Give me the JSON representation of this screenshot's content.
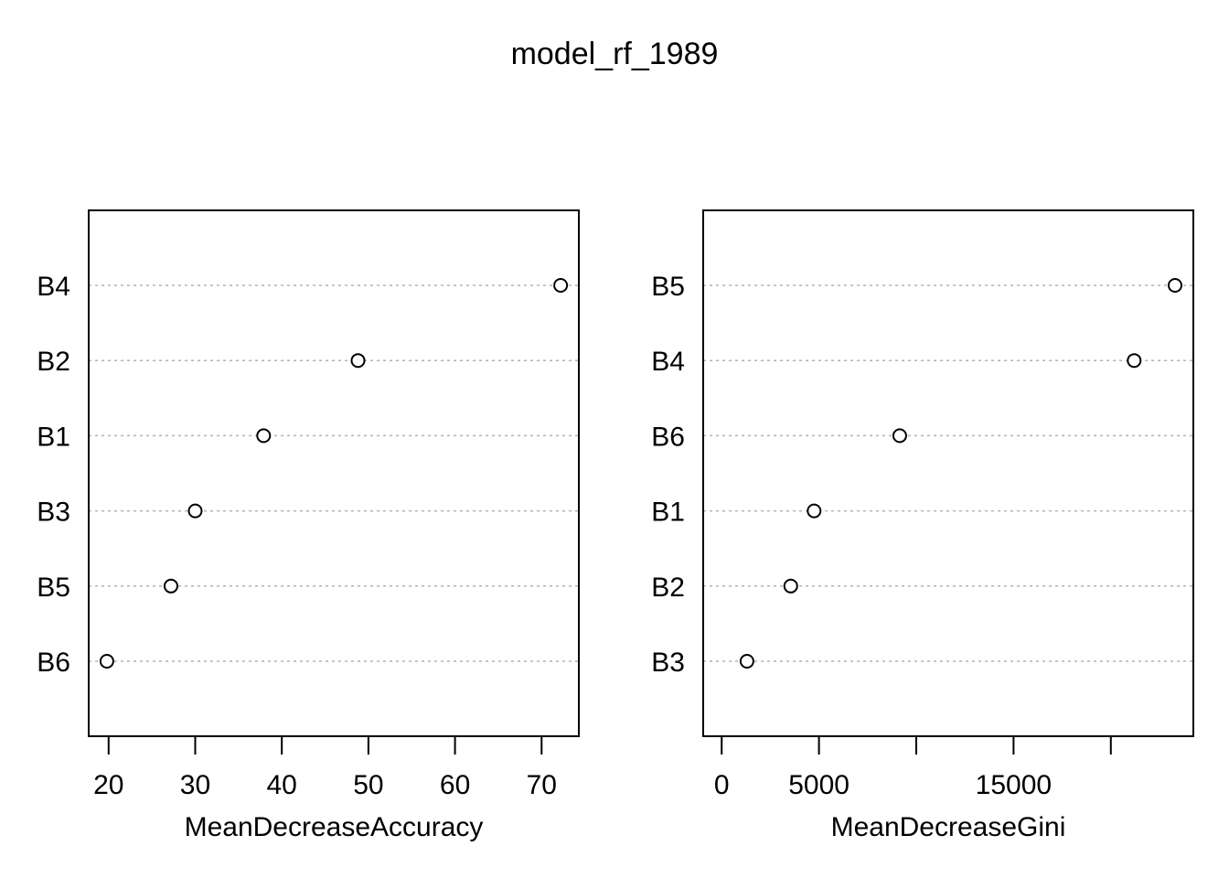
{
  "title": "model_rf_1989",
  "chart_data": [
    {
      "type": "scatter",
      "subtype": "dotchart",
      "xlabel": "MeanDecreaseAccuracy",
      "categories": [
        "B6",
        "B5",
        "B3",
        "B1",
        "B2",
        "B4"
      ],
      "values": [
        19.8,
        27.2,
        30.0,
        37.9,
        48.8,
        72.2
      ],
      "xlim": [
        17.7,
        74.3
      ],
      "xticks": [
        20,
        30,
        40,
        50,
        60,
        70
      ],
      "xtick_labels": [
        "20",
        "30",
        "40",
        "50",
        "60",
        "70"
      ],
      "grid": "dotted-horizontal"
    },
    {
      "type": "scatter",
      "subtype": "dotchart",
      "xlabel": "MeanDecreaseGini",
      "categories": [
        "B3",
        "B2",
        "B1",
        "B6",
        "B4",
        "B5"
      ],
      "values": [
        1300,
        3550,
        4750,
        9150,
        21200,
        23300
      ],
      "xlim": [
        -950,
        24240
      ],
      "xticks": [
        0,
        5000,
        10000,
        15000,
        20000
      ],
      "xtick_labels": [
        "0",
        "5000",
        "",
        "15000",
        ""
      ],
      "grid": "dotted-horizontal"
    }
  ]
}
